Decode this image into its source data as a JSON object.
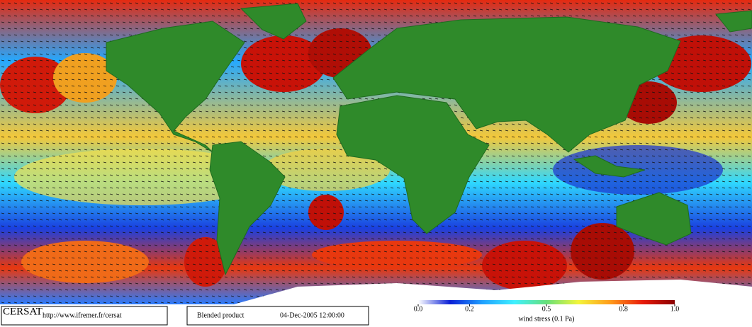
{
  "footer": {
    "logo": "CERSAT",
    "url": "http://www.ifremer.fr/cersat",
    "product": "Blended product",
    "datetime": "04-Dec-2005 12:00:00"
  },
  "colorbar": {
    "label": "wind stress (0.1 Pa)",
    "lim": [
      0,
      1
    ],
    "ticks": [
      {
        "value": 0,
        "label": "0.0"
      },
      0.2,
      0.5,
      0.8,
      {
        "value": 1,
        "label": "1.0"
      }
    ],
    "colors": [
      "#ffffff",
      "#0a1fd6",
      "#1fa0ff",
      "#3ff0ff",
      "#66e07a",
      "#f3f53a",
      "#ff9a1a",
      "#e81a0a",
      "#8a0000"
    ]
  }
}
